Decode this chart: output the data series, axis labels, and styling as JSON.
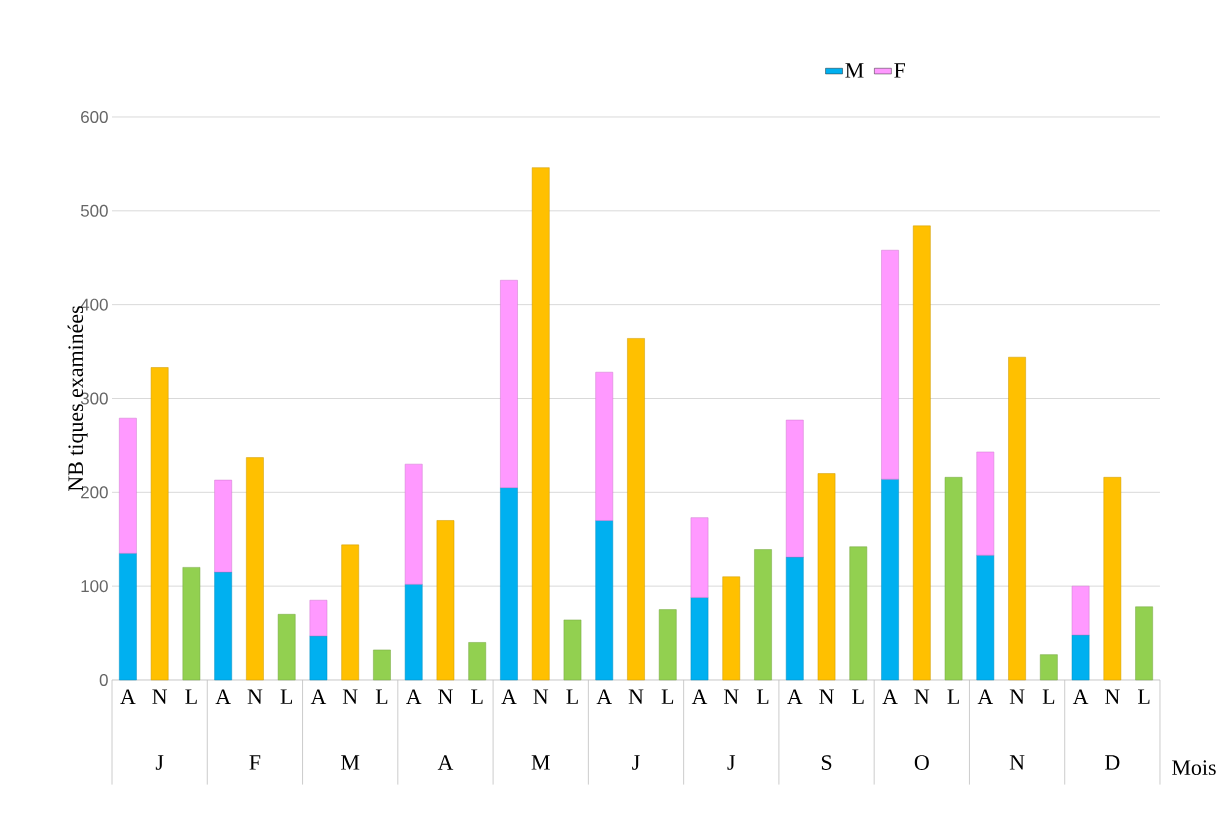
{
  "chart_data": {
    "type": "bar",
    "stacked": true,
    "ylabel": "NB tiques examinées",
    "xlabel": "Mois",
    "categories": [
      "A",
      "N",
      "L",
      "A",
      "N",
      "L",
      "A",
      "N",
      "L",
      "A",
      "N",
      "L",
      "A",
      "N",
      "L",
      "A",
      "N",
      "L",
      "A",
      "N",
      "L",
      "A",
      "N",
      "L",
      "A",
      "N",
      "L",
      "A",
      "N",
      "L",
      "A",
      "N",
      "L"
    ],
    "annotations": [
      "J",
      "F",
      "M",
      "A",
      "M",
      "J",
      "J",
      "S",
      "O",
      "N",
      "D"
    ],
    "series": [
      {
        "name": "M",
        "color": "#00b0f0",
        "values": [
          135,
          null,
          null,
          115,
          null,
          null,
          47,
          null,
          null,
          102,
          null,
          null,
          205,
          null,
          null,
          170,
          null,
          null,
          88,
          null,
          null,
          131,
          null,
          null,
          214,
          null,
          null,
          133,
          null,
          null,
          48,
          null,
          null
        ]
      },
      {
        "name": "F",
        "color": "#ff99ff",
        "values": [
          144,
          null,
          null,
          98,
          null,
          null,
          38,
          null,
          null,
          128,
          null,
          null,
          221,
          null,
          null,
          158,
          null,
          null,
          85,
          null,
          null,
          146,
          null,
          null,
          244,
          null,
          null,
          110,
          null,
          null,
          52,
          null,
          null
        ]
      },
      {
        "color": "#ffc000",
        "values": [
          null,
          333,
          null,
          null,
          237,
          null,
          null,
          144,
          null,
          null,
          170,
          null,
          null,
          546,
          null,
          null,
          364,
          null,
          null,
          110,
          null,
          null,
          220,
          null,
          null,
          484,
          null,
          null,
          344,
          null,
          null,
          216,
          null
        ]
      },
      {
        "color": "#92d050",
        "values": [
          null,
          null,
          120,
          null,
          null,
          70,
          null,
          null,
          32,
          null,
          null,
          40,
          null,
          null,
          64,
          null,
          null,
          75,
          null,
          null,
          139,
          null,
          null,
          142,
          null,
          null,
          216,
          null,
          null,
          27,
          null,
          null,
          78
        ]
      }
    ],
    "ylim": [
      0,
      600
    ],
    "yticks": [
      0,
      100,
      200,
      300,
      400,
      500,
      600
    ],
    "grid": "y",
    "legend": "top right"
  }
}
